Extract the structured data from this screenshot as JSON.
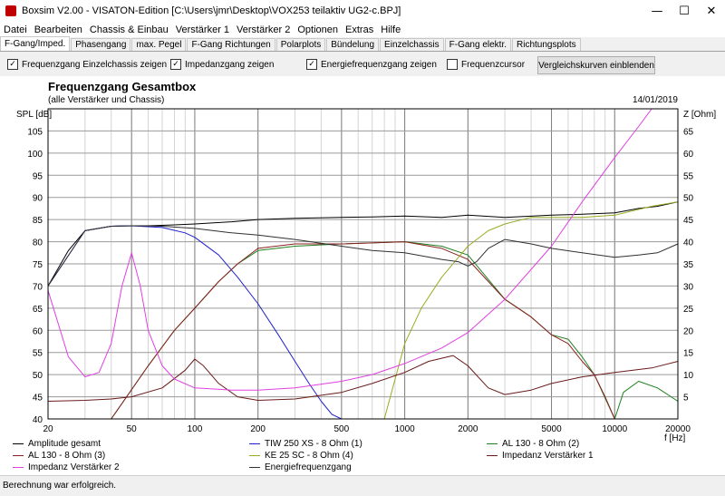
{
  "window": {
    "title": "Boxsim V2.00 - VISATON-Edition [C:\\Users\\jmr\\Desktop\\VOX253 teilaktiv UG2-c.BPJ]",
    "minimize": "—",
    "maximize": "☐",
    "close": "✕"
  },
  "menu": [
    "Datei",
    "Bearbeiten",
    "Chassis & Einbau",
    "Verstärker 1",
    "Verstärker 2",
    "Optionen",
    "Extras",
    "Hilfe"
  ],
  "tabs": [
    "F-Gang/Imped.",
    "Phasengang",
    "max. Pegel",
    "F-Gang Richtungen",
    "Polarplots",
    "Bündelung",
    "Einzelchassis",
    "F-Gang elektr.",
    "Richtungsplots"
  ],
  "options": {
    "einzelchassis": {
      "label": "Frequenzgang Einzelchassis zeigen",
      "checked": true
    },
    "impedanz": {
      "label": "Impedanzgang zeigen",
      "checked": true
    },
    "energie": {
      "label": "Energiefrequenzgang zeigen",
      "checked": true
    },
    "cursor": {
      "label": "Frequenzcursor",
      "checked": false
    },
    "compare_button": "Vergleichskurven einblenden"
  },
  "chart_data": {
    "type": "line",
    "title": "Frequenzgang Gesamtbox",
    "subtitle": "(alle Verstärker und Chassis)",
    "date": "14/01/2019",
    "xlabel": "f [Hz]",
    "ylabel_left": "SPL [dB]",
    "ylabel_right": "Z [Ohm]",
    "x_scale": "log",
    "xlim": [
      20,
      20000
    ],
    "ylim_left": [
      40,
      110
    ],
    "ylim_right": [
      0,
      70
    ],
    "x_ticks": [
      20,
      50,
      100,
      200,
      500,
      1000,
      2000,
      5000,
      10000,
      20000
    ],
    "x_tick_labels": [
      "20",
      "50",
      "100",
      "200",
      "500",
      "1000",
      "2000",
      "5000",
      "10000",
      "20000"
    ],
    "y_ticks_left": [
      40,
      45,
      50,
      55,
      60,
      65,
      70,
      75,
      80,
      85,
      90,
      95,
      100,
      105
    ],
    "y_ticks_right": [
      5,
      10,
      15,
      20,
      25,
      30,
      35,
      40,
      45,
      50,
      55,
      60,
      65
    ],
    "grid": true,
    "legend_position": "bottom",
    "series": [
      {
        "name": "Amplitude gesamt",
        "axis": "left",
        "color": "#000000",
        "x": [
          20,
          25,
          30,
          40,
          50,
          60,
          80,
          100,
          150,
          200,
          300,
          500,
          700,
          1000,
          1500,
          2000,
          3000,
          5000,
          7000,
          10000,
          13000,
          16000,
          20000
        ],
        "y": [
          70,
          78,
          82.5,
          83.5,
          83.6,
          83.6,
          83.8,
          84,
          84.5,
          85,
          85.3,
          85.5,
          85.6,
          85.8,
          85.5,
          86,
          85.5,
          86,
          86.2,
          86.5,
          87.5,
          88,
          89
        ]
      },
      {
        "name": "TIW 250 XS - 8 Ohm (1)",
        "axis": "left",
        "color": "#2020d0",
        "x": [
          20,
          30,
          40,
          50,
          70,
          90,
          100,
          130,
          160,
          200,
          250,
          300,
          350,
          400,
          450,
          500
        ],
        "y": [
          70,
          82.5,
          83.5,
          83.6,
          83.2,
          82,
          81,
          77,
          72,
          66,
          59,
          53,
          48,
          44,
          41,
          40
        ]
      },
      {
        "name": "AL 130 - 8 Ohm (2)",
        "axis": "left",
        "color": "#208020",
        "x": [
          40,
          60,
          80,
          100,
          130,
          160,
          200,
          300,
          500,
          1000,
          1500,
          2000,
          3000,
          4000,
          5000,
          6000,
          7000,
          8000,
          10000,
          11000,
          13000,
          16000,
          20000
        ],
        "y": [
          40,
          52,
          60,
          65,
          71,
          75,
          78,
          79,
          79.5,
          80,
          79,
          77,
          67,
          63,
          59,
          58,
          54,
          50,
          40,
          46,
          48.5,
          47,
          44
        ]
      },
      {
        "name": "AL 130 - 8 Ohm (3)",
        "axis": "left",
        "color": "#8b2020",
        "x": [
          40,
          60,
          80,
          100,
          130,
          160,
          200,
          300,
          500,
          1000,
          1500,
          2000,
          3000,
          4000,
          5000,
          6000,
          7000,
          8000,
          9000,
          10000
        ],
        "y": [
          40,
          52,
          60,
          65,
          71,
          75,
          78.5,
          79.5,
          79.5,
          80,
          78.5,
          76,
          67,
          63,
          59,
          57,
          53,
          50,
          45,
          40
        ]
      },
      {
        "name": "KE 25 SC - 8 Ohm    (4)",
        "axis": "left",
        "color": "#9aaa20",
        "x": [
          800,
          900,
          1000,
          1200,
          1500,
          2000,
          2500,
          3000,
          4000,
          5000,
          7000,
          10000,
          15000,
          20000
        ],
        "y": [
          40,
          49,
          57,
          65,
          72,
          79,
          82.5,
          84,
          85.5,
          85.5,
          85.5,
          86,
          88,
          89
        ]
      },
      {
        "name": "Impedanz Verstärker 1",
        "axis": "right",
        "color": "#6a1a1a",
        "x": [
          20,
          30,
          40,
          50,
          70,
          90,
          100,
          110,
          130,
          160,
          200,
          300,
          500,
          700,
          1000,
          1300,
          1700,
          2000,
          2500,
          3000,
          4000,
          5000,
          7000,
          10000,
          15000,
          20000
        ],
        "y": [
          4,
          4.2,
          4.5,
          5,
          7,
          11,
          13.5,
          12,
          8,
          5,
          4.2,
          4.5,
          6,
          8,
          10.5,
          13,
          14.3,
          12,
          7,
          5.5,
          6.5,
          8,
          9.5,
          10.5,
          11.5,
          13
        ]
      },
      {
        "name": "Impedanz Verstärker 2",
        "axis": "right",
        "color": "#e040e0",
        "x": [
          20,
          25,
          30,
          35,
          40,
          45,
          50,
          55,
          60,
          70,
          80,
          100,
          150,
          200,
          300,
          500,
          700,
          1000,
          1500,
          2000,
          3000,
          5000,
          7000,
          10000,
          13000,
          15000,
          20000
        ],
        "y": [
          29,
          14,
          9.5,
          10.5,
          17,
          30,
          37.5,
          30,
          20,
          12,
          9,
          7,
          6.5,
          6.5,
          7,
          8.5,
          10,
          12.5,
          16,
          19.5,
          27,
          39,
          49,
          59,
          66,
          70,
          70
        ]
      },
      {
        "name": "Energiefrequenzgang",
        "axis": "left",
        "color": "#303030",
        "x": [
          20,
          30,
          40,
          50,
          70,
          100,
          150,
          200,
          300,
          500,
          700,
          1000,
          1500,
          1800,
          2000,
          2200,
          2500,
          3000,
          4000,
          5000,
          7000,
          10000,
          13000,
          16000,
          20000
        ],
        "y": [
          70,
          82.5,
          83.5,
          83.6,
          83.5,
          83,
          82,
          81.5,
          80.5,
          79,
          78,
          77.5,
          76,
          75.5,
          74.5,
          75.5,
          78.5,
          80.5,
          79.5,
          78.5,
          77.5,
          76.5,
          77,
          77.5,
          79.5
        ]
      }
    ]
  },
  "legend_rows": [
    [
      "Amplitude gesamt",
      "TIW 250 XS - 8 Ohm (1)",
      "AL 130 - 8 Ohm (2)"
    ],
    [
      "AL 130 - 8 Ohm (3)",
      "KE 25 SC - 8 Ohm    (4)",
      "Impedanz Verstärker 1"
    ],
    [
      "Impedanz Verstärker 2",
      "Energiefrequenzgang"
    ]
  ],
  "status": "Berechnung war erfolgreich."
}
